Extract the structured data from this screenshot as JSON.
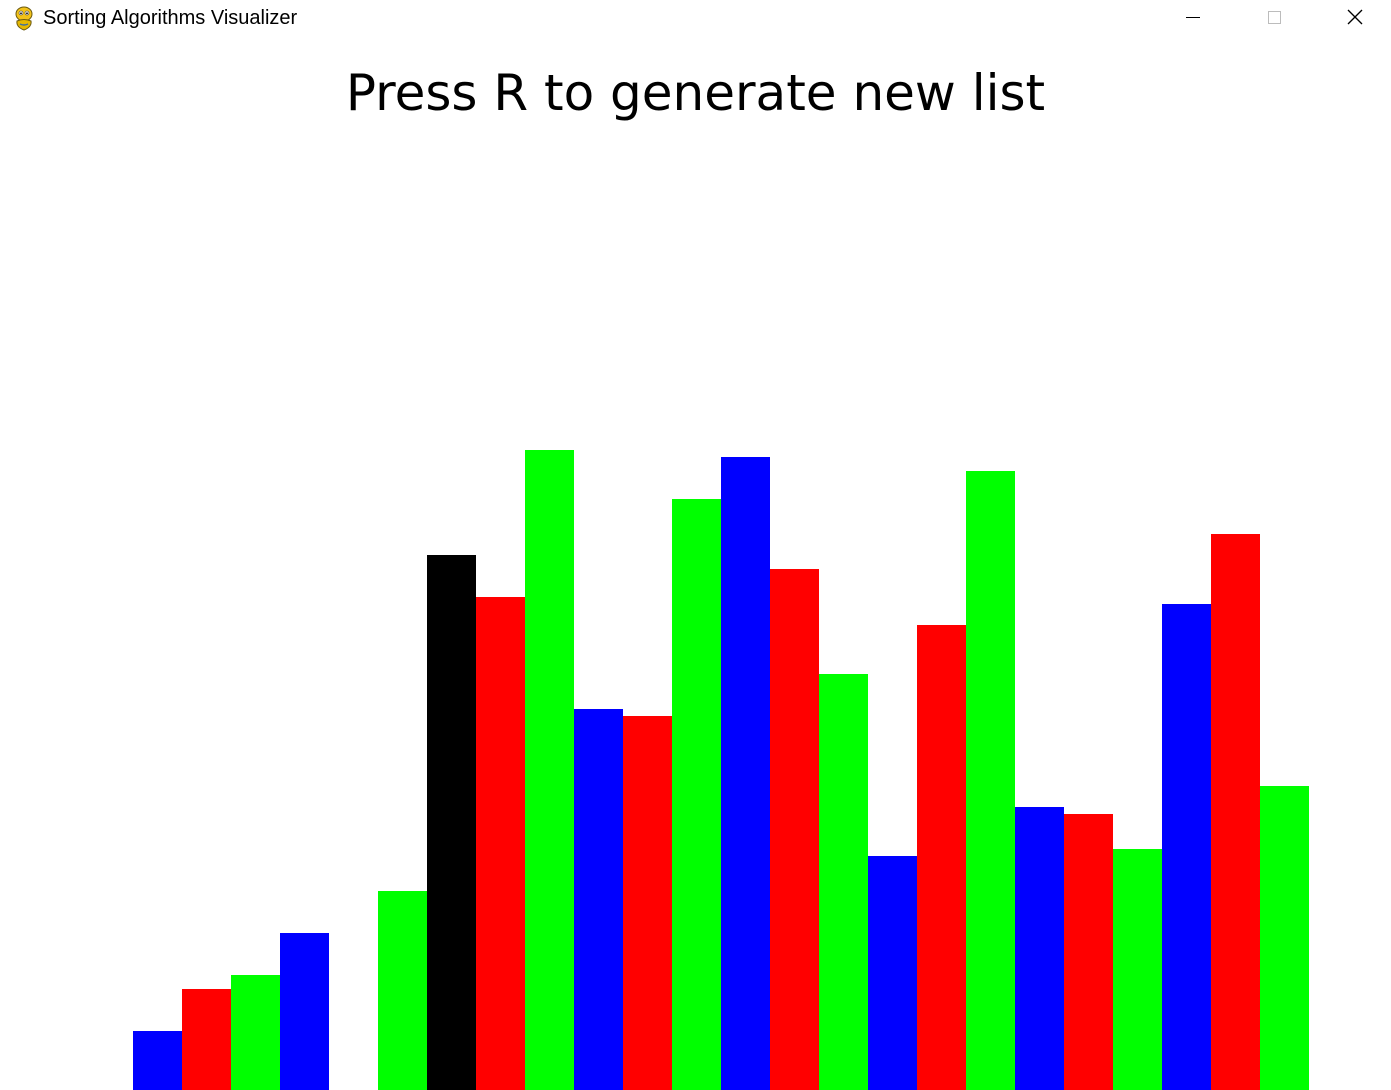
{
  "window": {
    "title": "Sorting Algorithms Visualizer",
    "app_icon": "pygame-snake-icon",
    "controls": {
      "minimize_icon": "minimize-icon",
      "maximize_icon": "maximize-icon",
      "close_icon": "close-icon"
    }
  },
  "instruction": "Press R to generate new list",
  "colors": {
    "background": "#ffffff",
    "blue": "#0000ff",
    "red": "#ff0000",
    "green": "#00ff00",
    "highlight": "#000000"
  },
  "chart_data": {
    "type": "bar",
    "values": [
      59,
      101,
      115,
      157,
      0,
      199,
      535,
      493,
      640,
      381,
      374,
      591,
      633,
      521,
      416,
      234,
      465,
      619,
      283,
      276,
      241,
      486,
      556,
      304
    ],
    "bar_colors": [
      "blue",
      "red",
      "green",
      "blue",
      "red",
      "green",
      "highlight",
      "red",
      "green",
      "blue",
      "red",
      "green",
      "blue",
      "red",
      "green",
      "blue",
      "red",
      "green",
      "blue",
      "red",
      "green",
      "blue",
      "red",
      "green"
    ],
    "highlighted_index": 6
  }
}
